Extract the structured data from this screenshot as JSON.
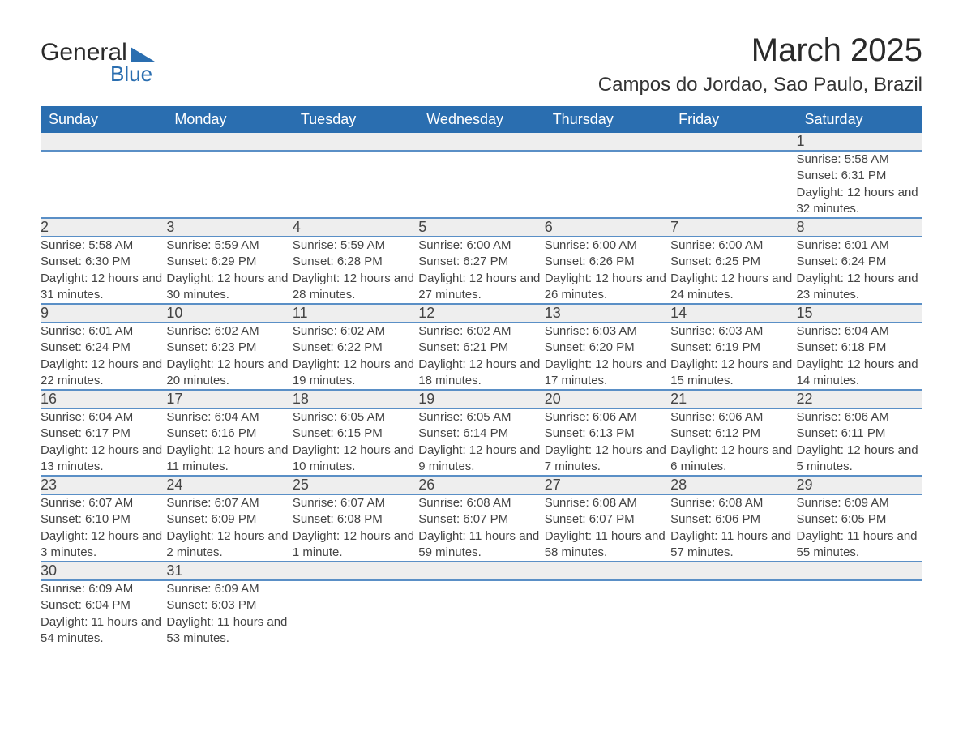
{
  "logo": {
    "text1": "General",
    "text2": "Blue",
    "triangle_color": "#2a6eb0"
  },
  "title": "March 2025",
  "location": "Campos do Jordao, Sao Paulo, Brazil",
  "colors": {
    "header_bg": "#2a6eb0",
    "header_text": "#ffffff",
    "daynum_bg": "#eeeeee",
    "row_border": "#5a8fc6",
    "text": "#444444",
    "background": "#ffffff"
  },
  "typography": {
    "title_fontsize": 40,
    "location_fontsize": 24,
    "header_fontsize": 18,
    "daynum_fontsize": 18,
    "body_fontsize": 15
  },
  "layout": {
    "start_weekday": 0,
    "columns": 7,
    "weeks": 6
  },
  "weekdays": [
    "Sunday",
    "Monday",
    "Tuesday",
    "Wednesday",
    "Thursday",
    "Friday",
    "Saturday"
  ],
  "days": [
    {
      "n": 1,
      "sunrise": "5:58 AM",
      "sunset": "6:31 PM",
      "daylight": "12 hours and 32 minutes."
    },
    {
      "n": 2,
      "sunrise": "5:58 AM",
      "sunset": "6:30 PM",
      "daylight": "12 hours and 31 minutes."
    },
    {
      "n": 3,
      "sunrise": "5:59 AM",
      "sunset": "6:29 PM",
      "daylight": "12 hours and 30 minutes."
    },
    {
      "n": 4,
      "sunrise": "5:59 AM",
      "sunset": "6:28 PM",
      "daylight": "12 hours and 28 minutes."
    },
    {
      "n": 5,
      "sunrise": "6:00 AM",
      "sunset": "6:27 PM",
      "daylight": "12 hours and 27 minutes."
    },
    {
      "n": 6,
      "sunrise": "6:00 AM",
      "sunset": "6:26 PM",
      "daylight": "12 hours and 26 minutes."
    },
    {
      "n": 7,
      "sunrise": "6:00 AM",
      "sunset": "6:25 PM",
      "daylight": "12 hours and 24 minutes."
    },
    {
      "n": 8,
      "sunrise": "6:01 AM",
      "sunset": "6:24 PM",
      "daylight": "12 hours and 23 minutes."
    },
    {
      "n": 9,
      "sunrise": "6:01 AM",
      "sunset": "6:24 PM",
      "daylight": "12 hours and 22 minutes."
    },
    {
      "n": 10,
      "sunrise": "6:02 AM",
      "sunset": "6:23 PM",
      "daylight": "12 hours and 20 minutes."
    },
    {
      "n": 11,
      "sunrise": "6:02 AM",
      "sunset": "6:22 PM",
      "daylight": "12 hours and 19 minutes."
    },
    {
      "n": 12,
      "sunrise": "6:02 AM",
      "sunset": "6:21 PM",
      "daylight": "12 hours and 18 minutes."
    },
    {
      "n": 13,
      "sunrise": "6:03 AM",
      "sunset": "6:20 PM",
      "daylight": "12 hours and 17 minutes."
    },
    {
      "n": 14,
      "sunrise": "6:03 AM",
      "sunset": "6:19 PM",
      "daylight": "12 hours and 15 minutes."
    },
    {
      "n": 15,
      "sunrise": "6:04 AM",
      "sunset": "6:18 PM",
      "daylight": "12 hours and 14 minutes."
    },
    {
      "n": 16,
      "sunrise": "6:04 AM",
      "sunset": "6:17 PM",
      "daylight": "12 hours and 13 minutes."
    },
    {
      "n": 17,
      "sunrise": "6:04 AM",
      "sunset": "6:16 PM",
      "daylight": "12 hours and 11 minutes."
    },
    {
      "n": 18,
      "sunrise": "6:05 AM",
      "sunset": "6:15 PM",
      "daylight": "12 hours and 10 minutes."
    },
    {
      "n": 19,
      "sunrise": "6:05 AM",
      "sunset": "6:14 PM",
      "daylight": "12 hours and 9 minutes."
    },
    {
      "n": 20,
      "sunrise": "6:06 AM",
      "sunset": "6:13 PM",
      "daylight": "12 hours and 7 minutes."
    },
    {
      "n": 21,
      "sunrise": "6:06 AM",
      "sunset": "6:12 PM",
      "daylight": "12 hours and 6 minutes."
    },
    {
      "n": 22,
      "sunrise": "6:06 AM",
      "sunset": "6:11 PM",
      "daylight": "12 hours and 5 minutes."
    },
    {
      "n": 23,
      "sunrise": "6:07 AM",
      "sunset": "6:10 PM",
      "daylight": "12 hours and 3 minutes."
    },
    {
      "n": 24,
      "sunrise": "6:07 AM",
      "sunset": "6:09 PM",
      "daylight": "12 hours and 2 minutes."
    },
    {
      "n": 25,
      "sunrise": "6:07 AM",
      "sunset": "6:08 PM",
      "daylight": "12 hours and 1 minute."
    },
    {
      "n": 26,
      "sunrise": "6:08 AM",
      "sunset": "6:07 PM",
      "daylight": "11 hours and 59 minutes."
    },
    {
      "n": 27,
      "sunrise": "6:08 AM",
      "sunset": "6:07 PM",
      "daylight": "11 hours and 58 minutes."
    },
    {
      "n": 28,
      "sunrise": "6:08 AM",
      "sunset": "6:06 PM",
      "daylight": "11 hours and 57 minutes."
    },
    {
      "n": 29,
      "sunrise": "6:09 AM",
      "sunset": "6:05 PM",
      "daylight": "11 hours and 55 minutes."
    },
    {
      "n": 30,
      "sunrise": "6:09 AM",
      "sunset": "6:04 PM",
      "daylight": "11 hours and 54 minutes."
    },
    {
      "n": 31,
      "sunrise": "6:09 AM",
      "sunset": "6:03 PM",
      "daylight": "11 hours and 53 minutes."
    }
  ],
  "labels": {
    "sunrise": "Sunrise: ",
    "sunset": "Sunset: ",
    "daylight": "Daylight: "
  },
  "first_day_column": 6
}
